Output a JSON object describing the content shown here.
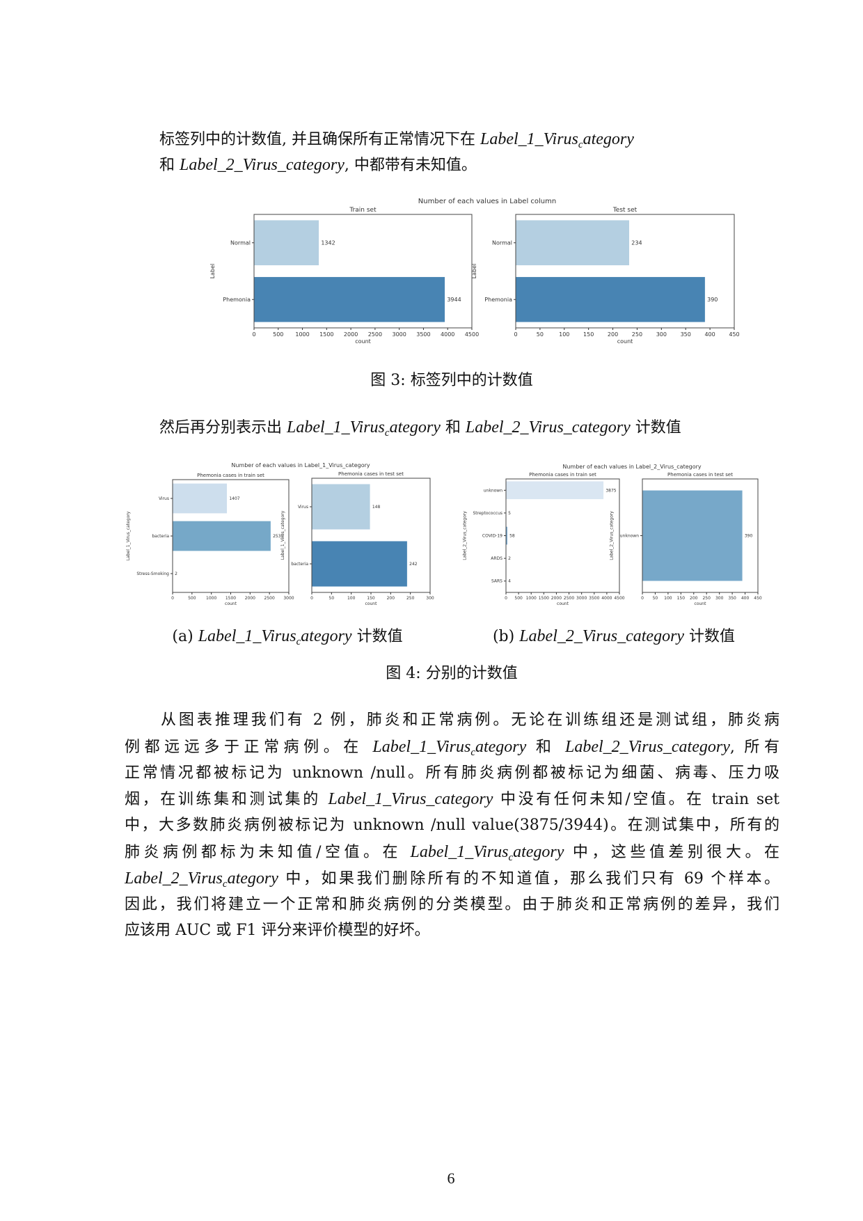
{
  "intro_lines": [
    [
      [
        "标签列中的计数值, 并且确保所有正常情况下在 ",
        "t"
      ],
      [
        "Label_1_Virus",
        "m"
      ],
      [
        "c",
        "s"
      ],
      [
        "ategory",
        "m"
      ]
    ],
    [
      [
        "和 ",
        "t"
      ],
      [
        "Label_2_Virus_category",
        "m"
      ],
      [
        ", 中都带有未知值。",
        "t"
      ]
    ]
  ],
  "figure3": {
    "suptitle": "Number of each values in Label column",
    "caption": "图 3: 标签列中的计数值",
    "panels": [
      {
        "title": "Train set",
        "categories": [
          "Normal",
          "Phemonia"
        ],
        "values": [
          1342,
          3944
        ],
        "colors": [
          "#b4cfe1",
          "#4884b3"
        ],
        "xlim": [
          0,
          4500
        ],
        "xticks": [
          0,
          500,
          1000,
          1500,
          2000,
          2500,
          3000,
          3500,
          4000,
          4500
        ],
        "xlabel": "count",
        "ylabel": "Label"
      },
      {
        "title": "Test set",
        "categories": [
          "Normal",
          "Phemonia"
        ],
        "values": [
          234,
          390
        ],
        "colors": [
          "#b4cfe1",
          "#4884b3"
        ],
        "xlim": [
          0,
          450
        ],
        "xticks": [
          0,
          50,
          100,
          150,
          200,
          250,
          300,
          350,
          400,
          450
        ],
        "xlabel": "count",
        "ylabel": "Label"
      }
    ]
  },
  "middle_line": [
    [
      "然后再分别表示出 ",
      "t"
    ],
    [
      "Label_1_Virus",
      "m"
    ],
    [
      "c",
      "s"
    ],
    [
      "ategory",
      "m"
    ],
    [
      " 和 ",
      "t"
    ],
    [
      "Label_2_Virus_category",
      "m"
    ],
    [
      " 计数值",
      "t"
    ]
  ],
  "figure4": {
    "caption": "图 4: 分别的计数值",
    "sub_a": {
      "prefix": "(a) ",
      "math": "Label_1_Virus",
      "sub": "c",
      "math2": "ategory",
      "suffix": " 计数值"
    },
    "sub_b": {
      "prefix": "(b) ",
      "math": "Label_2_Virus_category",
      "suffix": " 计数值"
    },
    "suptitle_a": "Number of each values in Label_1_Virus_category",
    "suptitle_b": "Number of each values in Label_2_Virus_category",
    "panels": [
      {
        "title": "Phemonia cases in train set",
        "categories": [
          "Virus",
          "bacteria",
          "Stress-Smoking"
        ],
        "values": [
          1407,
          2535,
          2
        ],
        "colors": [
          "#cddeed",
          "#76a8c8",
          "#3f77a8"
        ],
        "xlim": [
          0,
          3000
        ],
        "xticks": [
          0,
          500,
          1000,
          1500,
          2000,
          2500,
          3000
        ],
        "xlabel": "count",
        "ylabel": "Label_1_Virus_category"
      },
      {
        "title": "Phemonia cases in test set",
        "categories": [
          "Virus",
          "bacteria"
        ],
        "values": [
          148,
          242
        ],
        "colors": [
          "#b4cfe1",
          "#4884b3"
        ],
        "xlim": [
          0,
          300
        ],
        "xticks": [
          0,
          50,
          100,
          150,
          200,
          250,
          300
        ],
        "xlabel": "count",
        "ylabel": "Label_1_Virus_category"
      },
      {
        "title": "Phemonia cases in train set",
        "categories": [
          "unknown",
          "Streptococcus",
          "COVID-19",
          "ARDS",
          "SARS"
        ],
        "values": [
          3875,
          5,
          58,
          2,
          4
        ],
        "colors": [
          "#dae6f2",
          "#b4cfe1",
          "#6fa3cc",
          "#4884b3",
          "#2d649a"
        ],
        "xlim": [
          0,
          4500
        ],
        "xticks": [
          0,
          500,
          1000,
          1500,
          2000,
          2500,
          3000,
          3500,
          4000,
          4500
        ],
        "xlabel": "count",
        "ylabel": "Label_2_Virus_category"
      },
      {
        "title": "Phemonia cases in test set",
        "categories": [
          "unknown"
        ],
        "values": [
          390
        ],
        "colors": [
          "#77a8c9"
        ],
        "xlim": [
          0,
          450
        ],
        "xticks": [
          0,
          50,
          100,
          150,
          200,
          250,
          300,
          350,
          400,
          450
        ],
        "xlabel": "count",
        "ylabel": "Label_2_Virus_category"
      }
    ]
  },
  "paragraph_lines": [
    [
      [
        "　　从图表推理我们有 2 例，肺炎和正常病例。无论在训练组还是测试组，肺炎病",
        "t"
      ]
    ],
    [
      [
        "例都远远多于正常病例。在 ",
        "t"
      ],
      [
        "Label_1_Virus",
        "m"
      ],
      [
        "c",
        "s"
      ],
      [
        "ategory",
        "m"
      ],
      [
        " 和 ",
        "t"
      ],
      [
        "Label_2_Virus_category",
        "m"
      ],
      [
        ", 所有",
        "t"
      ]
    ],
    [
      [
        "正常情况都被标记为 unknown /null。所有肺炎病例都被标记为细菌、病毒、压力吸",
        "t"
      ]
    ],
    [
      [
        "烟，在训练集和测试集的 ",
        "t"
      ],
      [
        "Label_1_Virus_category",
        "m"
      ],
      [
        " 中没有任何未知/空值。在 train set",
        "t"
      ]
    ],
    [
      [
        "中，大多数肺炎病例被标记为 unknown /null value(3875/3944)。在测试集中，所有的",
        "t"
      ]
    ],
    [
      [
        "肺炎病例都标为未知值/空值。在 ",
        "t"
      ],
      [
        "Label_1_Virus",
        "m"
      ],
      [
        "c",
        "s"
      ],
      [
        "ategory",
        "m"
      ],
      [
        " 中，这些值差别很大。在",
        "t"
      ]
    ],
    [
      [
        "Label_2_Virus",
        "m"
      ],
      [
        "c",
        "s"
      ],
      [
        "ategory",
        "m"
      ],
      [
        " 中，如果我们删除所有的不知道值，那么我们只有 69 个样本。",
        "t"
      ]
    ],
    [
      [
        "因此，我们将建立一个正常和肺炎病例的分类模型。由于肺炎和正常病例的差异，我们",
        "t"
      ]
    ],
    [
      [
        "应该用 AUC 或 F1 评分来评价模型的好坏。",
        "t"
      ]
    ]
  ],
  "page_number": "6"
}
